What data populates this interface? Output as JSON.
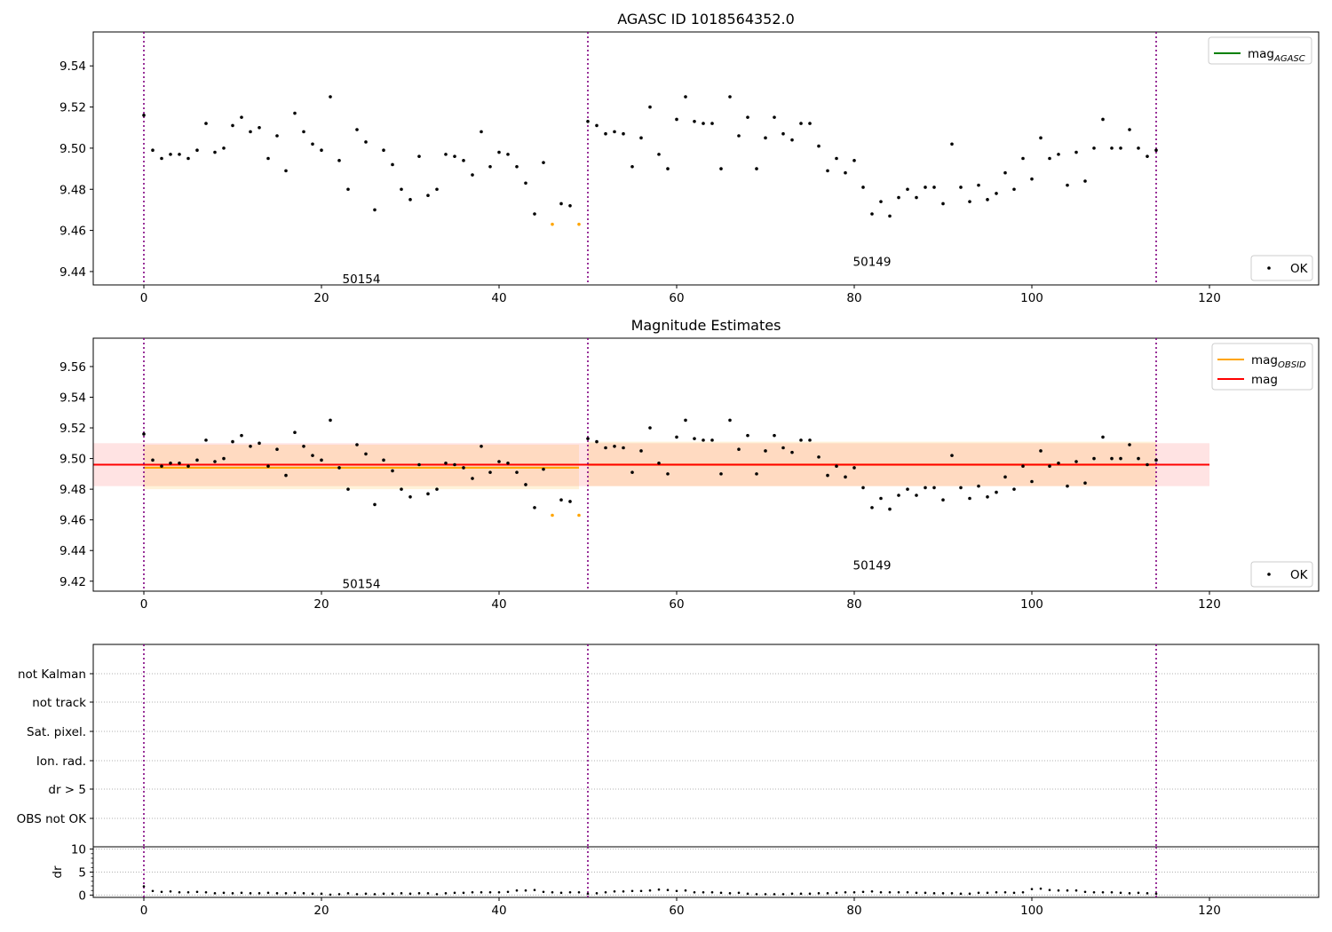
{
  "figure": {
    "title_top": "AGASC ID 1018564352.0",
    "title_mid": "Magnitude Estimates"
  },
  "colors": {
    "points_ok": "#000000",
    "points_flagged": "#ffa500",
    "mag_agasc": "#008000",
    "mag_obsid": "#ffa500",
    "mag": "#ff0000",
    "obs_boundary": "#800080"
  },
  "chart_data": [
    {
      "id": "top",
      "type": "scatter",
      "title": "AGASC ID 1018564352.0",
      "xlim": [
        -5.7,
        132.3
      ],
      "ylim": [
        9.4335,
        9.5565
      ],
      "xticks": [
        0,
        20,
        40,
        60,
        80,
        100,
        120
      ],
      "yticks": [
        9.44,
        9.46,
        9.48,
        9.5,
        9.52,
        9.54
      ],
      "grid": false,
      "obs_boundaries": [
        0,
        50,
        114
      ],
      "annotations": [
        {
          "text": "50154",
          "x": 24.5,
          "y": 9.4365
        },
        {
          "text": "50149",
          "x": 82,
          "y": 9.445
        }
      ],
      "legends": [
        {
          "placement": "top-right",
          "entries": [
            {
              "label": "mag",
              "subscript": "AGASC",
              "kind": "line",
              "color": "#008000"
            }
          ]
        },
        {
          "placement": "bottom-right",
          "entries": [
            {
              "label": "OK",
              "kind": "marker",
              "color": "#000000"
            }
          ]
        }
      ],
      "series": [
        {
          "name": "OK",
          "x": [
            0,
            1,
            2,
            3,
            4,
            5,
            6,
            7,
            8,
            9,
            10,
            11,
            12,
            13,
            14,
            15,
            16,
            17,
            18,
            19,
            20,
            21,
            22,
            23,
            24,
            25,
            26,
            27,
            28,
            29,
            30,
            31,
            32,
            33,
            34,
            35,
            36,
            37,
            38,
            39,
            40,
            41,
            42,
            43,
            44,
            45,
            47,
            48,
            50,
            51,
            52,
            53,
            54,
            55,
            56,
            57,
            58,
            59,
            60,
            61,
            62,
            63,
            64,
            65,
            66,
            67,
            68,
            69,
            70,
            71,
            72,
            73,
            74,
            75,
            76,
            77,
            78,
            79,
            80,
            81,
            82,
            83,
            84,
            85,
            86,
            87,
            88,
            89,
            90,
            91,
            92,
            93,
            94,
            95,
            96,
            97,
            98,
            99,
            100,
            101,
            102,
            103,
            104,
            105,
            106,
            107,
            108,
            109,
            110,
            111,
            112,
            113,
            114
          ],
          "y": [
            9.516,
            9.499,
            9.495,
            9.497,
            9.497,
            9.495,
            9.499,
            9.512,
            9.498,
            9.5,
            9.511,
            9.515,
            9.508,
            9.51,
            9.495,
            9.506,
            9.489,
            9.517,
            9.508,
            9.502,
            9.499,
            9.525,
            9.494,
            9.48,
            9.509,
            9.503,
            9.47,
            9.499,
            9.492,
            9.48,
            9.475,
            9.496,
            9.477,
            9.48,
            9.497,
            9.496,
            9.494,
            9.487,
            9.508,
            9.491,
            9.498,
            9.497,
            9.491,
            9.483,
            9.468,
            9.493,
            9.473,
            9.472,
            9.513,
            9.511,
            9.507,
            9.508,
            9.507,
            9.491,
            9.505,
            9.52,
            9.497,
            9.49,
            9.514,
            9.525,
            9.513,
            9.512,
            9.512,
            9.49,
            9.525,
            9.506,
            9.515,
            9.49,
            9.505,
            9.515,
            9.507,
            9.504,
            9.512,
            9.512,
            9.501,
            9.489,
            9.495,
            9.488,
            9.494,
            9.481,
            9.468,
            9.474,
            9.467,
            9.476,
            9.48,
            9.476,
            9.481,
            9.481,
            9.473,
            9.502,
            9.481,
            9.474,
            9.482,
            9.475,
            9.478,
            9.488,
            9.48,
            9.495,
            9.485,
            9.505,
            9.495,
            9.497,
            9.482,
            9.498,
            9.484,
            9.5,
            9.514,
            9.5,
            9.5,
            9.509,
            9.5,
            9.496,
            9.499
          ]
        },
        {
          "name": "flagged",
          "x": [
            46,
            49
          ],
          "y": [
            9.463,
            9.463
          ]
        }
      ]
    },
    {
      "id": "middle",
      "type": "scatter",
      "title": "Magnitude Estimates",
      "xlim": [
        -5.7,
        132.3
      ],
      "ylim": [
        9.4135,
        9.5785
      ],
      "xticks": [
        0,
        20,
        40,
        60,
        80,
        100,
        120
      ],
      "yticks": [
        9.42,
        9.44,
        9.46,
        9.48,
        9.5,
        9.52,
        9.54,
        9.56
      ],
      "grid": false,
      "obs_boundaries": [
        0,
        50,
        114
      ],
      "annotations": [
        {
          "text": "50154",
          "x": 24.5,
          "y": 9.4185
        },
        {
          "text": "50149",
          "x": 82,
          "y": 9.4305
        }
      ],
      "bands": [
        {
          "name": "mag",
          "x": [
            -5.7,
            120
          ],
          "center": 9.496,
          "low": 9.482,
          "high": 9.51,
          "color": "#ff0000"
        },
        {
          "name": "mag_OBSID 50154",
          "x": [
            0,
            49
          ],
          "center": 9.494,
          "low": 9.48,
          "high": 9.509,
          "color": "#ffa500"
        },
        {
          "name": "mag_OBSID 50149",
          "x": [
            50,
            114
          ],
          "center": 9.496,
          "low": 9.482,
          "high": 9.511,
          "color": "#ffa500"
        }
      ],
      "legends": [
        {
          "placement": "top-right",
          "entries": [
            {
              "label": "mag",
              "subscript": "OBSID",
              "kind": "line",
              "color": "#ffa500"
            },
            {
              "label": "mag",
              "kind": "line",
              "color": "#ff0000"
            }
          ]
        },
        {
          "placement": "bottom-right",
          "entries": [
            {
              "label": "OK",
              "kind": "marker",
              "color": "#000000"
            }
          ]
        }
      ]
    },
    {
      "id": "flags",
      "type": "scatter",
      "xlim": [
        -5.7,
        132.3
      ],
      "categories": [
        "OBS not OK",
        "dr > 5",
        "Ion. rad.",
        "Sat. pixel.",
        "not track",
        "not Kalman"
      ],
      "grid": true,
      "obs_boundaries": [
        0,
        50,
        114
      ],
      "series": []
    },
    {
      "id": "dr",
      "type": "scatter",
      "xlim": [
        -5.7,
        132.3
      ],
      "ylim": [
        -0.5,
        10.5
      ],
      "xticks": [
        0,
        20,
        40,
        60,
        80,
        100,
        120
      ],
      "yticks": [
        0,
        5,
        10
      ],
      "ylabel": "dr",
      "grid": true,
      "obs_boundaries": [
        0,
        50,
        114
      ],
      "series": [
        {
          "name": "dr",
          "x": [
            0,
            1,
            2,
            3,
            4,
            5,
            6,
            7,
            8,
            9,
            10,
            11,
            12,
            13,
            14,
            15,
            16,
            17,
            18,
            19,
            20,
            21,
            22,
            23,
            24,
            25,
            26,
            27,
            28,
            29,
            30,
            31,
            32,
            33,
            34,
            35,
            36,
            37,
            38,
            39,
            40,
            41,
            42,
            43,
            44,
            45,
            46,
            47,
            48,
            49,
            50,
            51,
            52,
            53,
            54,
            55,
            56,
            57,
            58,
            59,
            60,
            61,
            62,
            63,
            64,
            65,
            66,
            67,
            68,
            69,
            70,
            71,
            72,
            73,
            74,
            75,
            76,
            77,
            78,
            79,
            80,
            81,
            82,
            83,
            84,
            85,
            86,
            87,
            88,
            89,
            90,
            91,
            92,
            93,
            94,
            95,
            96,
            97,
            98,
            99,
            100,
            101,
            102,
            103,
            104,
            105,
            106,
            107,
            108,
            109,
            110,
            111,
            112,
            113,
            114
          ],
          "y": [
            1.9,
            0.9,
            0.7,
            0.8,
            0.6,
            0.6,
            0.7,
            0.6,
            0.4,
            0.5,
            0.4,
            0.5,
            0.4,
            0.4,
            0.5,
            0.4,
            0.4,
            0.5,
            0.4,
            0.3,
            0.3,
            0.1,
            0.2,
            0.4,
            0.2,
            0.3,
            0.2,
            0.3,
            0.3,
            0.4,
            0.3,
            0.4,
            0.4,
            0.2,
            0.4,
            0.5,
            0.5,
            0.6,
            0.6,
            0.6,
            0.6,
            0.7,
            1.0,
            1.0,
            1.1,
            0.7,
            0.6,
            0.5,
            0.6,
            0.6,
            0.3,
            0.4,
            0.6,
            0.8,
            0.8,
            0.9,
            0.9,
            1.0,
            1.2,
            1.1,
            0.9,
            1.0,
            0.6,
            0.6,
            0.6,
            0.5,
            0.4,
            0.5,
            0.3,
            0.2,
            0.2,
            0.2,
            0.2,
            0.3,
            0.3,
            0.3,
            0.4,
            0.4,
            0.5,
            0.6,
            0.6,
            0.7,
            0.8,
            0.6,
            0.6,
            0.6,
            0.6,
            0.5,
            0.5,
            0.4,
            0.4,
            0.4,
            0.3,
            0.3,
            0.5,
            0.5,
            0.6,
            0.6,
            0.5,
            0.6,
            1.3,
            1.4,
            1.1,
            1.0,
            1.0,
            1.0,
            0.7,
            0.6,
            0.6,
            0.6,
            0.5,
            0.4,
            0.5,
            0.4,
            0.3
          ]
        }
      ]
    }
  ]
}
